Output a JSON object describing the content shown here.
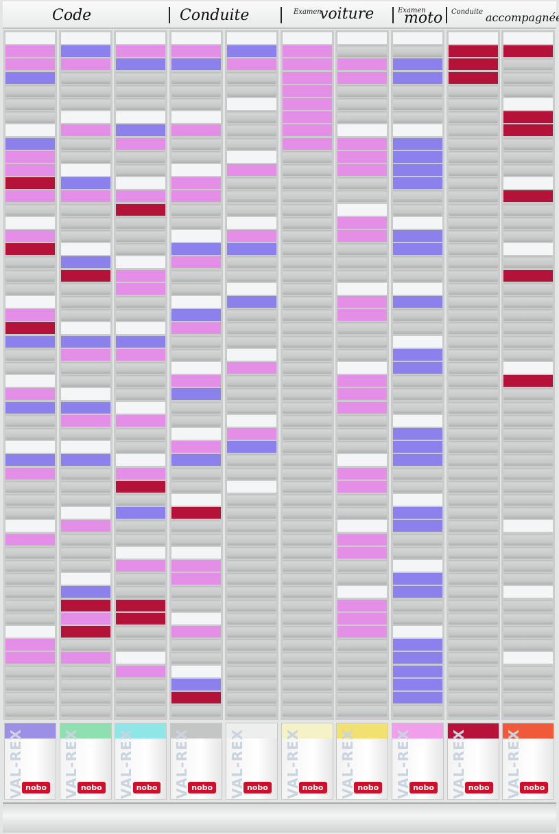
{
  "header": {
    "labels": [
      {
        "text": "Code"
      },
      {
        "text": "Conduite"
      },
      {
        "text": "Examen"
      },
      {
        "text": "voiture"
      },
      {
        "text": "Examen"
      },
      {
        "text": "moto"
      },
      {
        "text": "Conduite"
      },
      {
        "text": "accompagnée"
      }
    ]
  },
  "boxes": [
    {
      "brand": "VAL-REX",
      "logo": "nobo"
    },
    {
      "brand": "VAL-REX",
      "logo": "nobo"
    },
    {
      "brand": "VAL-REX",
      "logo": "nobo"
    },
    {
      "brand": "VAL-REX",
      "logo": "nobo"
    },
    {
      "brand": "VAL-REX",
      "logo": "nobo"
    },
    {
      "brand": "VAL-REX",
      "logo": "nobo"
    },
    {
      "brand": "VAL-REX",
      "logo": "nobo"
    },
    {
      "brand": "VAL-REX",
      "logo": "nobo"
    },
    {
      "brand": "VAL-REX",
      "logo": "nobo"
    },
    {
      "brand": "VAL-REX",
      "logo": "nobo"
    }
  ]
}
